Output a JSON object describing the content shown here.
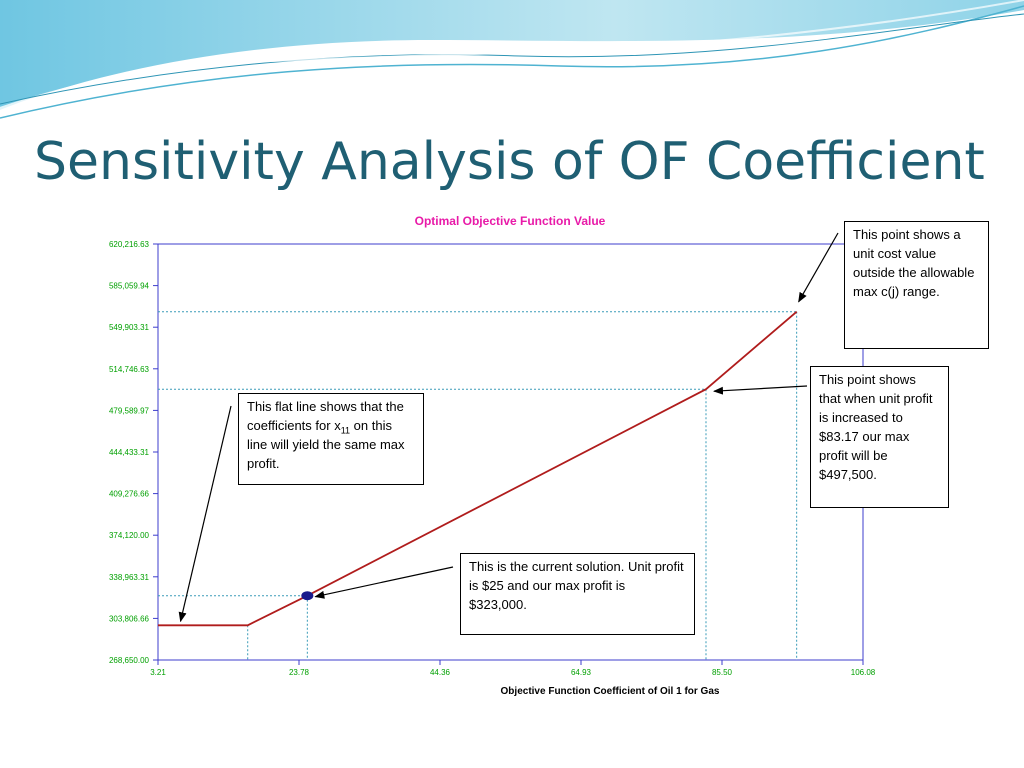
{
  "slide": {
    "title": "Sensitivity Analysis of OF Coefficient"
  },
  "colors": {
    "title": "#1f5f73",
    "chart_title": "#e81aa8",
    "axis_labels": "#00a000",
    "axis_line": "#3c3ccc",
    "data_line": "#b01c1c",
    "guide_lines": "#3a9bb8",
    "marker": "#1a1a8c"
  },
  "chart_data": {
    "type": "line",
    "title": "Optimal Objective Function Value",
    "xlabel": "Objective Function Coefficient of Oil 1 for Gas",
    "ylabel": "",
    "x_ticks": [
      "3.21",
      "23.78",
      "44.36",
      "64.93",
      "85.50",
      "106.08"
    ],
    "y_ticks": [
      "268,650.00",
      "303,806.66",
      "338,963.31",
      "374,120.00",
      "409,276.66",
      "444,433.31",
      "479,589.97",
      "514,746.63",
      "549,903.31",
      "585,059.94",
      "620,216.63"
    ],
    "xlim": [
      3.21,
      106.08
    ],
    "ylim": [
      268650.0,
      620216.63
    ],
    "series": [
      {
        "x": [
          3.21,
          16.3,
          25,
          83.17,
          96.4
        ],
        "y": [
          298000,
          298000,
          323000,
          497500,
          563000
        ]
      }
    ],
    "current_solution": {
      "x": 25,
      "y": 323000
    },
    "guide_points": [
      {
        "x": 16.3,
        "y": 298000
      },
      {
        "x": 25,
        "y": 323000
      },
      {
        "x": 83.17,
        "y": 497500
      },
      {
        "x": 96.4,
        "y": 563000
      }
    ],
    "grid": false
  },
  "annotations": {
    "flat_line": {
      "text_before": "This flat line shows that the coefficients for x",
      "subscript": "11",
      "text_after": " on this line will yield the same max profit."
    },
    "current_solution": {
      "text": "This is the current solution. Unit profit is $25 and our max profit is $323,000."
    },
    "max_profit": {
      "text": "This point shows that when unit profit is increased to $83.17 our max profit will be $497,500."
    },
    "outside_range": {
      "text": "This point shows a unit cost value outside the allowable max c(j) range."
    }
  }
}
